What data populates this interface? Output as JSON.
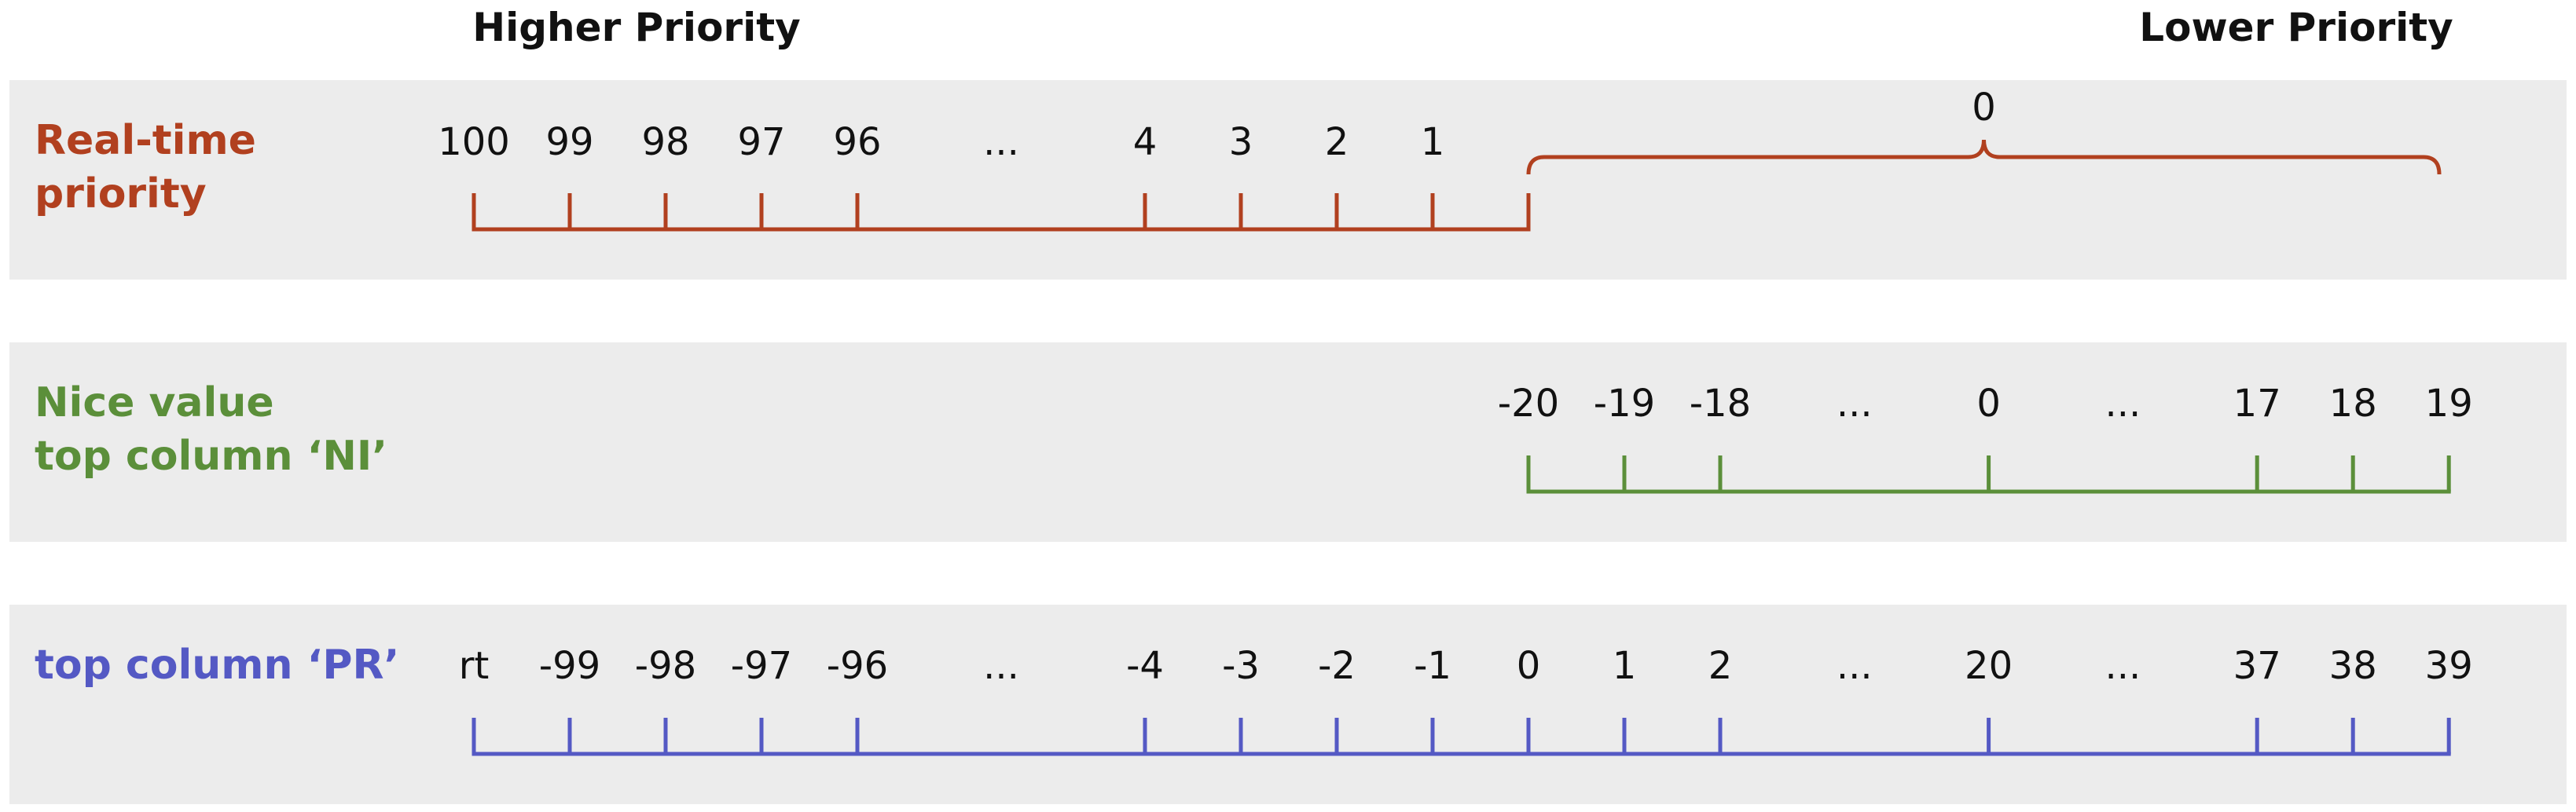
{
  "header": {
    "higher_label": "Higher Priority",
    "lower_label": "Lower Priority"
  },
  "colors": {
    "realtime": "#b1401f",
    "nice": "#5b8f3a",
    "pr": "#5459c4",
    "band": "#ececec",
    "text": "#111111"
  },
  "rows": [
    {
      "id": "realtime",
      "label_lines": [
        "Real-time",
        "priority"
      ],
      "ticks": [
        {
          "label": "100",
          "pos": 0
        },
        {
          "label": "99",
          "pos": 1
        },
        {
          "label": "98",
          "pos": 2
        },
        {
          "label": "97",
          "pos": 3
        },
        {
          "label": "96",
          "pos": 4
        },
        {
          "label": "...",
          "pos": 5.5,
          "gap": true
        },
        {
          "label": "4",
          "pos": 7
        },
        {
          "label": "3",
          "pos": 8
        },
        {
          "label": "2",
          "pos": 9
        },
        {
          "label": "1",
          "pos": 10
        },
        {
          "label": "",
          "pos": 11
        }
      ],
      "bracket": {
        "label": "0",
        "from": 11,
        "to": 20.5
      }
    },
    {
      "id": "nice",
      "label_lines": [
        "Nice value",
        "top column ‘NI’"
      ],
      "ticks": [
        {
          "label": "-20",
          "pos": 11
        },
        {
          "label": "-19",
          "pos": 12
        },
        {
          "label": "-18",
          "pos": 13
        },
        {
          "label": "...",
          "pos": 14.4,
          "gap": true
        },
        {
          "label": "0",
          "pos": 15.8
        },
        {
          "label": "...",
          "pos": 17.2,
          "gap": true
        },
        {
          "label": "17",
          "pos": 18.6
        },
        {
          "label": "18",
          "pos": 19.6
        },
        {
          "label": "19",
          "pos": 20.6
        }
      ]
    },
    {
      "id": "pr",
      "label_lines": [
        "top column ‘PR’"
      ],
      "ticks": [
        {
          "label": "rt",
          "pos": 0
        },
        {
          "label": "-99",
          "pos": 1
        },
        {
          "label": "-98",
          "pos": 2
        },
        {
          "label": "-97",
          "pos": 3
        },
        {
          "label": "-96",
          "pos": 4
        },
        {
          "label": "...",
          "pos": 5.5,
          "gap": true
        },
        {
          "label": "-4",
          "pos": 7
        },
        {
          "label": "-3",
          "pos": 8
        },
        {
          "label": "-2",
          "pos": 9
        },
        {
          "label": "-1",
          "pos": 10
        },
        {
          "label": "0",
          "pos": 11
        },
        {
          "label": "1",
          "pos": 12
        },
        {
          "label": "2",
          "pos": 13
        },
        {
          "label": "...",
          "pos": 14.4,
          "gap": true
        },
        {
          "label": "20",
          "pos": 15.8
        },
        {
          "label": "...",
          "pos": 17.2,
          "gap": true
        },
        {
          "label": "37",
          "pos": 18.6
        },
        {
          "label": "38",
          "pos": 19.6
        },
        {
          "label": "39",
          "pos": 20.6
        }
      ]
    }
  ]
}
